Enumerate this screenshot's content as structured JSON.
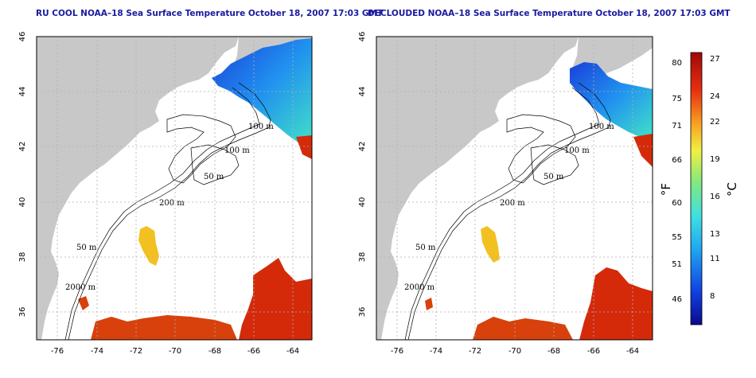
{
  "titles": {
    "left": "RU COOL NOAA–18 Sea Surface Temperature October 18, 2007 17:03 GMT",
    "right": "DECLOUDED NOAA–18 Sea Surface Temperature October 18, 2007 17:03 GMT"
  },
  "axes": {
    "lat_ticks": [
      "46",
      "44",
      "42",
      "40",
      "38",
      "36"
    ],
    "lon_ticks": [
      "-76",
      "-74",
      "-72",
      "-70",
      "-68",
      "-66",
      "-64"
    ]
  },
  "contour_labels": [
    "100 m",
    "100 m",
    "50 m",
    "200 m",
    "50 m",
    "2000 m"
  ],
  "colorbar": {
    "fahrenheit_label": "°F",
    "celsius_label": "°C",
    "fahrenheit_ticks": [
      "80",
      "75",
      "71",
      "66",
      "60",
      "55",
      "51",
      "46"
    ],
    "celsius_ticks": [
      "27",
      "24",
      "22",
      "19",
      "16",
      "13",
      "11",
      "8"
    ]
  },
  "colors": {
    "land": "#c8c8c8",
    "ocean": "#ffffff",
    "warm": "#d42a0a",
    "cold": "#1a4fd6",
    "title": "#1a1aa0"
  }
}
